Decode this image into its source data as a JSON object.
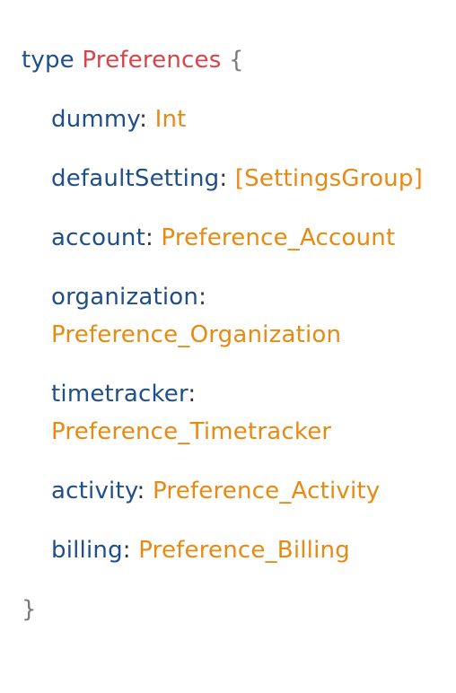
{
  "schema": {
    "keyword": "type",
    "type_name": "Preferences",
    "open_brace": "{",
    "close_brace": "}",
    "fields": [
      {
        "name": "dummy",
        "type": "Int"
      },
      {
        "name": "defaultSetting",
        "type": "[SettingsGroup]"
      },
      {
        "name": "account",
        "type": "Preference_Account"
      },
      {
        "name": "organization",
        "type": "Preference_Organization"
      },
      {
        "name": "timetracker",
        "type": "Preference_Timetracker"
      },
      {
        "name": "activity",
        "type": "Preference_Activity"
      },
      {
        "name": "billing",
        "type": "Preference_Billing"
      }
    ]
  },
  "colors": {
    "keyword": "#1f4e8c",
    "type_name": "#d9434a",
    "field_name": "#1f4e8c",
    "field_type": "#e88a12",
    "brace": "#7a7a7a"
  }
}
